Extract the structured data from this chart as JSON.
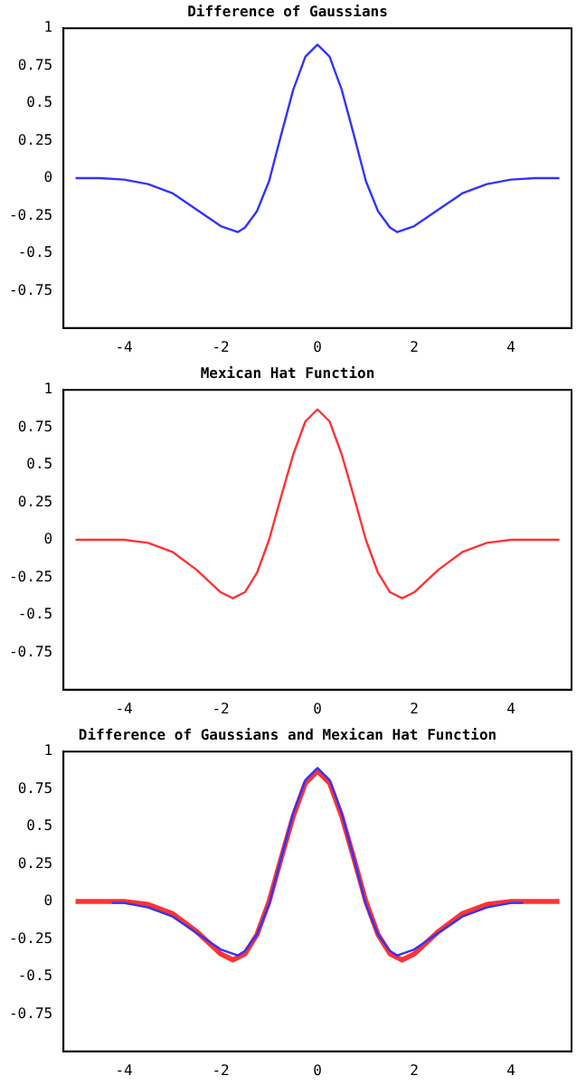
{
  "chart_data": [
    {
      "type": "line",
      "title": "Difference of Gaussians",
      "xlim": [
        -5.25,
        5.25
      ],
      "xticks": [
        -4,
        -2,
        0,
        2,
        4
      ],
      "ylim": [
        -1,
        1
      ],
      "yticks": [
        -0.75,
        -0.5,
        -0.25,
        0,
        0.25,
        0.5,
        0.75,
        1
      ],
      "grid": false,
      "legend": false,
      "marker": "none",
      "line_style": "solid",
      "x": [
        -5,
        -4.5,
        -4,
        -3.5,
        -3,
        -2.5,
        -2,
        -1.65,
        -1.5,
        -1.25,
        -1,
        -0.75,
        -0.5,
        -0.25,
        0,
        0.25,
        0.5,
        0.75,
        1,
        1.25,
        1.5,
        1.65,
        2,
        2.5,
        3,
        3.5,
        4,
        4.5,
        5
      ],
      "series": [
        {
          "color": "#3333ff",
          "values": [
            0,
            0,
            -0.01,
            -0.04,
            -0.1,
            -0.21,
            -0.32,
            -0.36,
            -0.33,
            -0.22,
            -0.02,
            0.29,
            0.59,
            0.81,
            0.89,
            0.81,
            0.59,
            0.29,
            -0.02,
            -0.22,
            -0.33,
            -0.36,
            -0.32,
            -0.21,
            -0.1,
            -0.04,
            -0.01,
            0,
            0
          ]
        }
      ]
    },
    {
      "type": "line",
      "title": "Mexican Hat Function",
      "xlim": [
        -5.25,
        5.25
      ],
      "xticks": [
        -4,
        -2,
        0,
        2,
        4
      ],
      "ylim": [
        -1,
        1
      ],
      "yticks": [
        -0.75,
        -0.5,
        -0.25,
        0,
        0.25,
        0.5,
        0.75,
        1
      ],
      "grid": false,
      "legend": false,
      "marker": "none",
      "line_style": "solid",
      "x": [
        -5,
        -4.5,
        -4,
        -3.5,
        -3,
        -2.5,
        -2,
        -1.75,
        -1.5,
        -1.25,
        -1,
        -0.75,
        -0.5,
        -0.25,
        0,
        0.25,
        0.5,
        0.75,
        1,
        1.25,
        1.5,
        1.75,
        2,
        2.5,
        3,
        3.5,
        4,
        4.5,
        5
      ],
      "series": [
        {
          "color": "#ff3333",
          "values": [
            0,
            0,
            0,
            -0.02,
            -0.08,
            -0.2,
            -0.35,
            -0.39,
            -0.35,
            -0.22,
            0,
            0.29,
            0.57,
            0.79,
            0.87,
            0.79,
            0.57,
            0.29,
            0,
            -0.22,
            -0.35,
            -0.39,
            -0.35,
            -0.2,
            -0.08,
            -0.02,
            0,
            0,
            0
          ]
        }
      ]
    },
    {
      "type": "line",
      "title": "Difference of Gaussians and Mexican Hat Function",
      "xlim": [
        -5.25,
        5.25
      ],
      "xticks": [
        -4,
        -2,
        0,
        2,
        4
      ],
      "ylim": [
        -1,
        1
      ],
      "yticks": [
        -0.75,
        -0.5,
        -0.25,
        0,
        0.25,
        0.5,
        0.75,
        1
      ],
      "grid": false,
      "legend": false,
      "marker": "none",
      "line_style": "solid",
      "series": [
        {
          "color": "#3333ff",
          "x": [
            -4.25,
            -4,
            -3.5,
            -3,
            -2.5,
            -2,
            -1.65,
            -1.5,
            -1.25,
            -1,
            -0.75,
            -0.5,
            -0.25,
            0,
            0.25,
            0.5,
            0.75,
            1,
            1.25,
            1.5,
            1.65,
            2,
            2.5,
            3,
            3.5,
            4,
            4.25
          ],
          "values": [
            -0.01,
            -0.01,
            -0.04,
            -0.1,
            -0.21,
            -0.32,
            -0.36,
            -0.33,
            -0.22,
            -0.02,
            0.29,
            0.59,
            0.81,
            0.89,
            0.81,
            0.59,
            0.29,
            -0.02,
            -0.22,
            -0.33,
            -0.36,
            -0.32,
            -0.21,
            -0.1,
            -0.04,
            -0.01,
            -0.01
          ]
        },
        {
          "color": "#ff3333",
          "x": [
            -5,
            -4.5,
            -4,
            -3.5,
            -3,
            -2.5,
            -2,
            -1.75,
            -1.5,
            -1.25,
            -1,
            -0.75,
            -0.5,
            -0.25,
            0,
            0.25,
            0.5,
            0.75,
            1,
            1.25,
            1.5,
            1.75,
            2,
            2.5,
            3,
            3.5,
            4,
            4.5,
            5
          ],
          "values": [
            0,
            0,
            0,
            -0.02,
            -0.08,
            -0.2,
            -0.35,
            -0.39,
            -0.35,
            -0.22,
            0,
            0.29,
            0.57,
            0.79,
            0.87,
            0.79,
            0.57,
            0.29,
            0,
            -0.22,
            -0.35,
            -0.39,
            -0.35,
            -0.2,
            -0.08,
            -0.02,
            0,
            0,
            0
          ]
        }
      ]
    }
  ]
}
